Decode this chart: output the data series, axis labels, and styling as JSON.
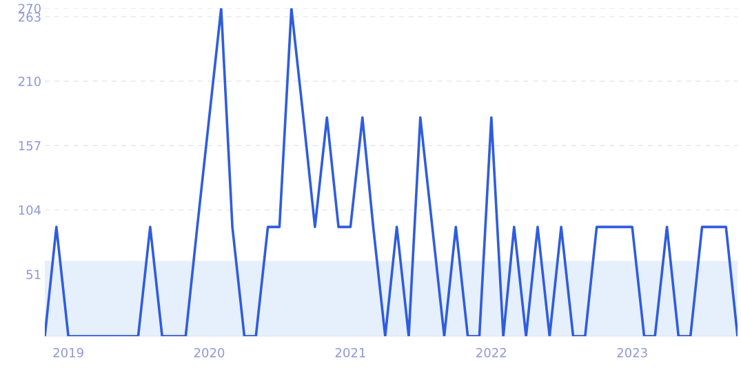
{
  "chart_data": {
    "type": "line",
    "x": [
      "2018-11",
      "2018-12",
      "2019-01",
      "2019-02",
      "2019-03",
      "2019-04",
      "2019-05",
      "2019-06",
      "2019-07",
      "2019-08",
      "2019-09",
      "2019-10",
      "2019-11",
      "2019-12",
      "2020-01",
      "2020-02",
      "2020-03",
      "2020-04",
      "2020-05",
      "2020-06",
      "2020-07",
      "2020-08",
      "2020-09",
      "2020-10",
      "2020-11",
      "2020-12",
      "2021-01",
      "2021-02",
      "2021-03",
      "2021-04",
      "2021-05",
      "2021-06",
      "2021-07",
      "2021-08",
      "2021-09",
      "2021-10",
      "2021-11",
      "2021-12",
      "2022-01",
      "2022-02",
      "2022-03",
      "2022-04",
      "2022-05",
      "2022-06",
      "2022-07",
      "2022-08",
      "2022-09",
      "2022-10",
      "2022-11",
      "2022-12",
      "2023-01",
      "2023-02",
      "2023-03",
      "2023-04",
      "2023-05",
      "2023-06",
      "2023-07",
      "2023-08",
      "2023-09",
      "2023-10"
    ],
    "series": [
      {
        "color": "#2f5ce0",
        "values": [
          0,
          90,
          0,
          0,
          0,
          0,
          0,
          0,
          0,
          90,
          0,
          0,
          0,
          90,
          180,
          270,
          90,
          0,
          0,
          90,
          90,
          270,
          180,
          90,
          180,
          90,
          90,
          180,
          90,
          0,
          90,
          0,
          180,
          90,
          0,
          90,
          0,
          0,
          180,
          0,
          90,
          0,
          90,
          0,
          90,
          0,
          0,
          90,
          90,
          90,
          90,
          0,
          0,
          90,
          0,
          0,
          90,
          90,
          90,
          0
        ]
      }
    ],
    "xlim": [
      "2018-11",
      "2023-10"
    ],
    "xticks": [
      {
        "value": "2019-01",
        "label": "2019"
      },
      {
        "value": "2020-01",
        "label": "2020"
      },
      {
        "value": "2021-01",
        "label": "2021"
      },
      {
        "value": "2022-01",
        "label": "2022"
      },
      {
        "value": "2023-01",
        "label": "2023"
      }
    ],
    "ylim": [
      0,
      270
    ],
    "yticks": [
      51,
      104,
      157,
      210,
      263,
      270
    ],
    "bands": [
      {
        "axis": "y",
        "from": 0,
        "to": 62,
        "color": "#e6effc"
      }
    ],
    "grid": "y",
    "line_style": "solid",
    "marker": "none",
    "legend": false
  }
}
